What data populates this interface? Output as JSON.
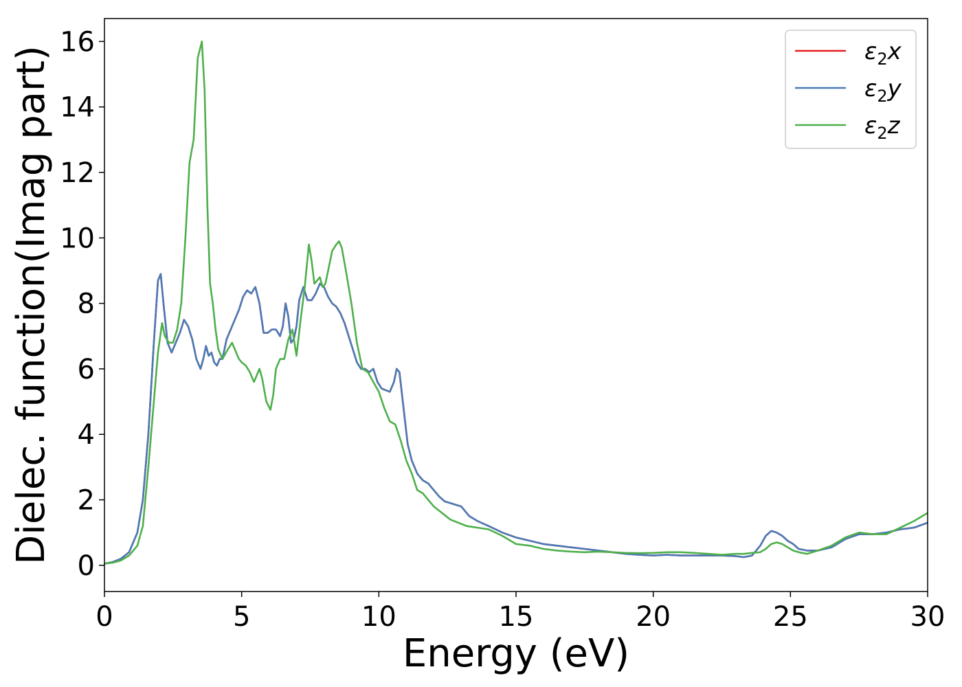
{
  "chart_data": {
    "type": "line",
    "title": "",
    "xlabel": "Energy (eV)",
    "ylabel": "Dielec. function(Imag part)",
    "xlim": [
      0,
      30
    ],
    "ylim": [
      -0.8,
      16.7
    ],
    "xticks": [
      0,
      5,
      10,
      15,
      20,
      25,
      30
    ],
    "yticks": [
      0,
      2,
      4,
      6,
      8,
      10,
      12,
      14,
      16
    ],
    "grid": false,
    "legend_position": "top-right",
    "series": [
      {
        "name": "ε₂x",
        "legend_base": "ε",
        "legend_sub": "2",
        "legend_suffix": "x",
        "color": "#e41a1c",
        "x": [
          0,
          0.3,
          0.6,
          0.9,
          1.2,
          1.4,
          1.6,
          1.8,
          1.95,
          2.05,
          2.15,
          2.3,
          2.45,
          2.6,
          2.75,
          2.9,
          3.05,
          3.2,
          3.35,
          3.5,
          3.6,
          3.7,
          3.8,
          3.9,
          4.0,
          4.1,
          4.2,
          4.3,
          4.45,
          4.6,
          4.75,
          4.9,
          5.05,
          5.2,
          5.35,
          5.5,
          5.65,
          5.8,
          5.95,
          6.1,
          6.25,
          6.4,
          6.5,
          6.6,
          6.7,
          6.8,
          6.9,
          7.0,
          7.1,
          7.25,
          7.4,
          7.55,
          7.7,
          7.85,
          8.0,
          8.15,
          8.3,
          8.45,
          8.6,
          8.75,
          8.9,
          9.05,
          9.2,
          9.35,
          9.5,
          9.65,
          9.8,
          9.95,
          10.1,
          10.25,
          10.4,
          10.55,
          10.65,
          10.75,
          10.9,
          11.05,
          11.2,
          11.4,
          11.6,
          11.8,
          12.0,
          12.2,
          12.4,
          12.6,
          12.8,
          13.0,
          13.3,
          13.6,
          14.0,
          14.5,
          15.0,
          15.5,
          16.0,
          16.5,
          17.0,
          17.5,
          18.0,
          18.5,
          19.0,
          19.5,
          20.0,
          20.5,
          21.0,
          21.5,
          22.0,
          22.5,
          23.0,
          23.3,
          23.6,
          23.9,
          24.1,
          24.3,
          24.5,
          24.7,
          24.9,
          25.1,
          25.3,
          25.6,
          26.0,
          26.5,
          27.0,
          27.5,
          28.0,
          28.5,
          29.0,
          29.5,
          30.0
        ],
        "y": [
          0.05,
          0.1,
          0.2,
          0.4,
          1.0,
          2.0,
          4.0,
          6.8,
          8.7,
          8.9,
          8.0,
          6.8,
          6.5,
          6.8,
          7.1,
          7.5,
          7.3,
          6.9,
          6.3,
          6.0,
          6.3,
          6.7,
          6.4,
          6.5,
          6.2,
          6.1,
          6.3,
          6.3,
          6.9,
          7.2,
          7.5,
          7.8,
          8.2,
          8.4,
          8.3,
          8.5,
          8.0,
          7.1,
          7.1,
          7.2,
          7.2,
          7.0,
          7.3,
          8.0,
          7.6,
          6.8,
          6.9,
          7.3,
          8.1,
          8.5,
          8.1,
          8.1,
          8.3,
          8.6,
          8.5,
          8.2,
          8.0,
          7.9,
          7.7,
          7.4,
          7.0,
          6.6,
          6.2,
          6.0,
          6.0,
          5.9,
          6.0,
          5.6,
          5.4,
          5.35,
          5.3,
          5.6,
          6.0,
          5.9,
          4.8,
          3.7,
          3.2,
          2.8,
          2.6,
          2.5,
          2.3,
          2.1,
          1.95,
          1.9,
          1.85,
          1.8,
          1.5,
          1.35,
          1.2,
          1.0,
          0.85,
          0.75,
          0.65,
          0.6,
          0.55,
          0.5,
          0.45,
          0.4,
          0.35,
          0.32,
          0.3,
          0.32,
          0.3,
          0.3,
          0.3,
          0.3,
          0.28,
          0.25,
          0.3,
          0.6,
          0.9,
          1.05,
          1.0,
          0.9,
          0.75,
          0.65,
          0.5,
          0.45,
          0.45,
          0.55,
          0.8,
          0.95,
          0.95,
          1.0,
          1.1,
          1.15,
          1.3
        ]
      },
      {
        "name": "ε₂y",
        "legend_base": "ε",
        "legend_sub": "2",
        "legend_suffix": "y",
        "color": "#4a7bb7",
        "x": [
          0,
          0.3,
          0.6,
          0.9,
          1.2,
          1.4,
          1.6,
          1.8,
          1.95,
          2.05,
          2.15,
          2.3,
          2.45,
          2.6,
          2.75,
          2.9,
          3.05,
          3.2,
          3.35,
          3.5,
          3.6,
          3.7,
          3.8,
          3.9,
          4.0,
          4.1,
          4.2,
          4.3,
          4.45,
          4.6,
          4.75,
          4.9,
          5.05,
          5.2,
          5.35,
          5.5,
          5.65,
          5.8,
          5.95,
          6.1,
          6.25,
          6.4,
          6.5,
          6.6,
          6.7,
          6.8,
          6.9,
          7.0,
          7.1,
          7.25,
          7.4,
          7.55,
          7.7,
          7.85,
          8.0,
          8.15,
          8.3,
          8.45,
          8.6,
          8.75,
          8.9,
          9.05,
          9.2,
          9.35,
          9.5,
          9.65,
          9.8,
          9.95,
          10.1,
          10.25,
          10.4,
          10.55,
          10.65,
          10.75,
          10.9,
          11.05,
          11.2,
          11.4,
          11.6,
          11.8,
          12.0,
          12.2,
          12.4,
          12.6,
          12.8,
          13.0,
          13.3,
          13.6,
          14.0,
          14.5,
          15.0,
          15.5,
          16.0,
          16.5,
          17.0,
          17.5,
          18.0,
          18.5,
          19.0,
          19.5,
          20.0,
          20.5,
          21.0,
          21.5,
          22.0,
          22.5,
          23.0,
          23.3,
          23.6,
          23.9,
          24.1,
          24.3,
          24.5,
          24.7,
          24.9,
          25.1,
          25.3,
          25.6,
          26.0,
          26.5,
          27.0,
          27.5,
          28.0,
          28.5,
          29.0,
          29.5,
          30.0
        ],
        "y": [
          0.05,
          0.1,
          0.2,
          0.4,
          1.0,
          2.0,
          4.0,
          6.8,
          8.7,
          8.9,
          8.0,
          6.8,
          6.5,
          6.8,
          7.1,
          7.5,
          7.3,
          6.9,
          6.3,
          6.0,
          6.3,
          6.7,
          6.4,
          6.5,
          6.2,
          6.1,
          6.3,
          6.3,
          6.9,
          7.2,
          7.5,
          7.8,
          8.2,
          8.4,
          8.3,
          8.5,
          8.0,
          7.1,
          7.1,
          7.2,
          7.2,
          7.0,
          7.3,
          8.0,
          7.6,
          6.8,
          6.9,
          7.3,
          8.1,
          8.5,
          8.1,
          8.1,
          8.3,
          8.6,
          8.5,
          8.2,
          8.0,
          7.9,
          7.7,
          7.4,
          7.0,
          6.6,
          6.2,
          6.0,
          6.0,
          5.9,
          6.0,
          5.6,
          5.4,
          5.35,
          5.3,
          5.6,
          6.0,
          5.9,
          4.8,
          3.7,
          3.2,
          2.8,
          2.6,
          2.5,
          2.3,
          2.1,
          1.95,
          1.9,
          1.85,
          1.8,
          1.5,
          1.35,
          1.2,
          1.0,
          0.85,
          0.75,
          0.65,
          0.6,
          0.55,
          0.5,
          0.45,
          0.4,
          0.35,
          0.32,
          0.3,
          0.32,
          0.3,
          0.3,
          0.3,
          0.3,
          0.28,
          0.25,
          0.3,
          0.6,
          0.9,
          1.05,
          1.0,
          0.9,
          0.75,
          0.65,
          0.5,
          0.45,
          0.45,
          0.55,
          0.8,
          0.95,
          0.95,
          1.0,
          1.1,
          1.15,
          1.3
        ]
      },
      {
        "name": "ε₂z",
        "legend_base": "ε",
        "legend_sub": "2",
        "legend_suffix": "z",
        "color": "#4daf4a",
        "x": [
          0,
          0.3,
          0.6,
          0.9,
          1.2,
          1.4,
          1.6,
          1.8,
          1.95,
          2.1,
          2.2,
          2.35,
          2.5,
          2.65,
          2.8,
          2.95,
          3.1,
          3.25,
          3.4,
          3.55,
          3.65,
          3.75,
          3.85,
          3.95,
          4.05,
          4.15,
          4.3,
          4.5,
          4.65,
          4.8,
          4.9,
          5.0,
          5.15,
          5.3,
          5.45,
          5.55,
          5.65,
          5.75,
          5.9,
          6.05,
          6.15,
          6.25,
          6.4,
          6.55,
          6.7,
          6.85,
          7.0,
          7.15,
          7.3,
          7.45,
          7.55,
          7.65,
          7.75,
          7.85,
          7.95,
          8.05,
          8.15,
          8.3,
          8.45,
          8.55,
          8.65,
          8.8,
          9.0,
          9.2,
          9.4,
          9.6,
          9.8,
          10.0,
          10.2,
          10.4,
          10.6,
          10.8,
          11.0,
          11.2,
          11.4,
          11.6,
          11.8,
          12.0,
          12.3,
          12.6,
          12.9,
          13.2,
          13.6,
          14.0,
          14.5,
          15.0,
          15.5,
          16.0,
          16.5,
          17.0,
          17.5,
          18.0,
          18.5,
          19.0,
          19.5,
          20.0,
          20.5,
          21.0,
          21.5,
          22.0,
          22.5,
          23.0,
          23.3,
          23.6,
          23.9,
          24.1,
          24.3,
          24.5,
          24.7,
          24.9,
          25.1,
          25.3,
          25.6,
          26.0,
          26.5,
          27.0,
          27.5,
          28.0,
          28.5,
          29.0,
          29.5,
          30.0
        ],
        "y": [
          0.05,
          0.08,
          0.15,
          0.3,
          0.6,
          1.2,
          3.0,
          5.0,
          6.5,
          7.4,
          7.0,
          6.8,
          6.8,
          7.2,
          8.0,
          10.0,
          12.3,
          13.0,
          15.5,
          16.0,
          14.5,
          11.0,
          8.6,
          8.0,
          7.2,
          6.6,
          6.3,
          6.6,
          6.8,
          6.5,
          6.3,
          6.2,
          6.1,
          5.9,
          5.6,
          5.8,
          6.0,
          5.7,
          5.0,
          4.75,
          5.2,
          6.0,
          6.3,
          6.3,
          6.9,
          7.2,
          6.4,
          7.5,
          8.5,
          9.8,
          9.3,
          8.6,
          8.7,
          8.8,
          8.5,
          8.6,
          9.0,
          9.6,
          9.8,
          9.9,
          9.7,
          9.0,
          8.0,
          6.8,
          6.0,
          5.9,
          5.6,
          5.3,
          4.8,
          4.4,
          4.3,
          3.8,
          3.2,
          2.8,
          2.3,
          2.2,
          2.0,
          1.8,
          1.6,
          1.4,
          1.3,
          1.2,
          1.15,
          1.1,
          0.9,
          0.65,
          0.6,
          0.5,
          0.45,
          0.42,
          0.4,
          0.42,
          0.4,
          0.38,
          0.37,
          0.38,
          0.4,
          0.4,
          0.38,
          0.35,
          0.32,
          0.35,
          0.35,
          0.38,
          0.4,
          0.5,
          0.65,
          0.7,
          0.65,
          0.55,
          0.45,
          0.4,
          0.35,
          0.45,
          0.6,
          0.85,
          1.0,
          0.95,
          0.95,
          1.15,
          1.35,
          1.6
        ]
      }
    ]
  }
}
